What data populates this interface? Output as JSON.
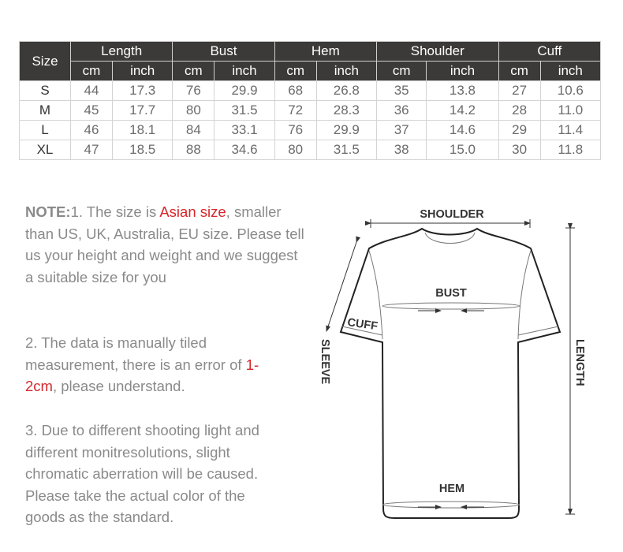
{
  "table": {
    "size_header": "Size",
    "groups": [
      "Length",
      "Bust",
      "Hem",
      "Shoulder",
      "Cuff"
    ],
    "units": [
      "cm",
      "inch"
    ],
    "rows": [
      {
        "size": "S",
        "values": [
          "44",
          "17.3",
          "76",
          "29.9",
          "68",
          "26.8",
          "35",
          "13.8",
          "27",
          "10.6"
        ]
      },
      {
        "size": "M",
        "values": [
          "45",
          "17.7",
          "80",
          "31.5",
          "72",
          "28.3",
          "36",
          "14.2",
          "28",
          "11.0"
        ]
      },
      {
        "size": "L",
        "values": [
          "46",
          "18.1",
          "84",
          "33.1",
          "76",
          "29.9",
          "37",
          "14.6",
          "29",
          "11.4"
        ]
      },
      {
        "size": "XL",
        "values": [
          "47",
          "18.5",
          "88",
          "34.6",
          "80",
          "31.5",
          "38",
          "15.0",
          "30",
          "11.8"
        ]
      }
    ]
  },
  "notes": {
    "n1_label": "NOTE:",
    "n1_pre": "1. The size is ",
    "n1_red": "Asian size",
    "n1_post": ", smaller than US, UK, Australia, EU size. Please tell us your height and weight and we suggest a suitable size for you",
    "n2_pre": "2. The data is manually tiled measurement, there is an error of ",
    "n2_red": "1-2cm",
    "n2_post": ", please understand.",
    "n3": "3. Due to different shooting light and different monitresolutions, slight chromatic aberration will be caused. Please take the actual color of the goods as the standard."
  },
  "diagram": {
    "shoulder": "SHOULDER",
    "bust": "BUST",
    "cuff": "CUFF",
    "sleeve": "SLEEVE",
    "length": "LENGTH",
    "hem": "HEM"
  },
  "colors": {
    "header_bg": "#3c3a38",
    "accent_red": "#d7262b",
    "text_gray": "#8a8a8a"
  }
}
